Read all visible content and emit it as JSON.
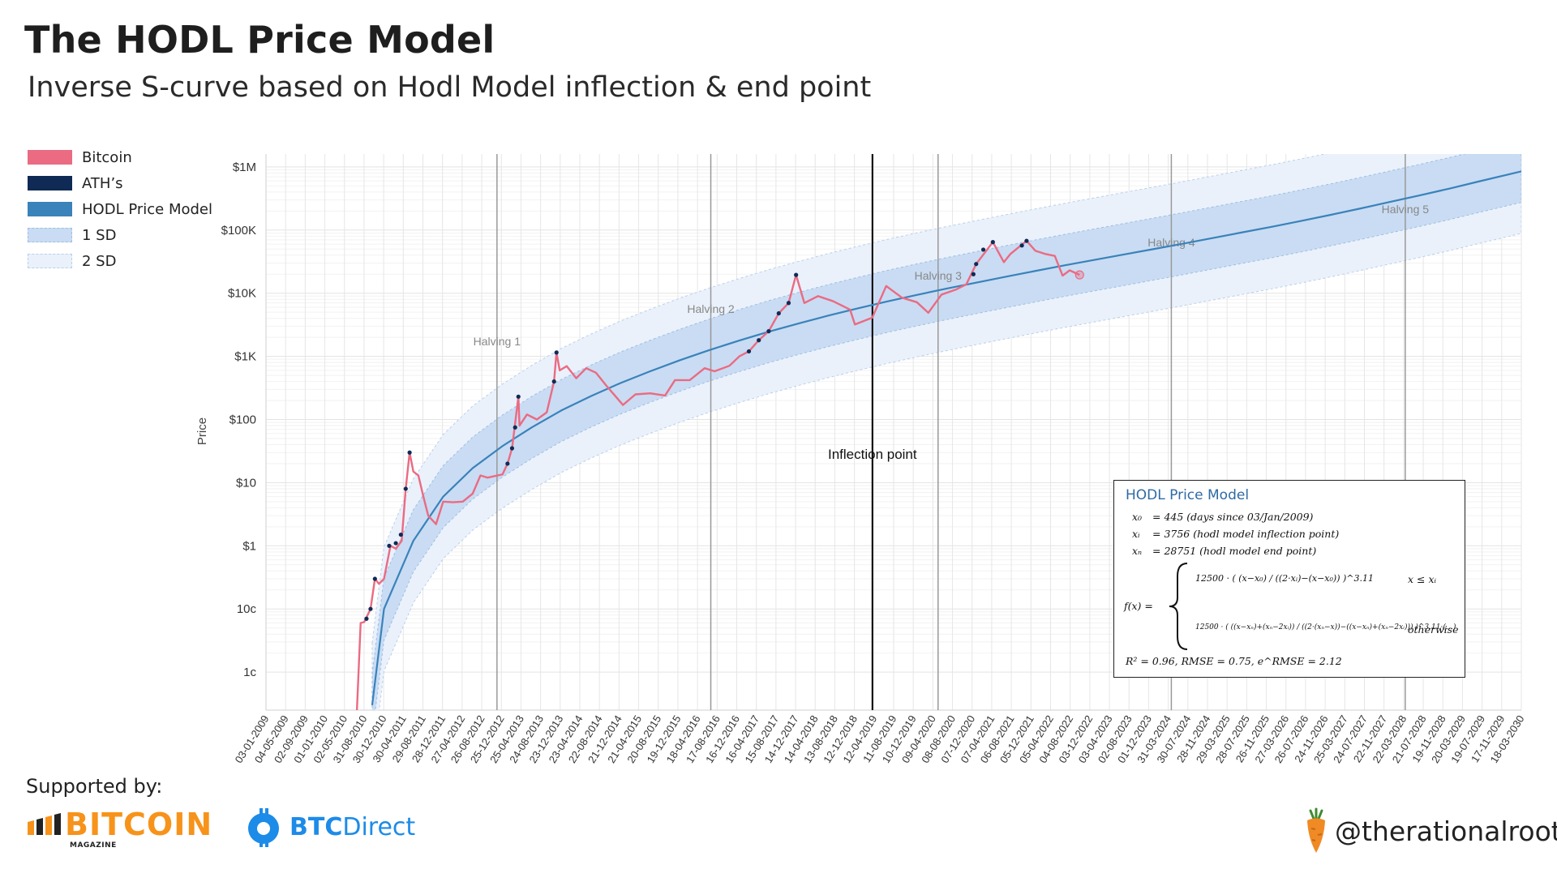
{
  "header": {
    "title": "The HODL Price Model",
    "subtitle": "Inverse S-curve based on Hodl Model inflection & end point"
  },
  "legend": [
    {
      "label": "Bitcoin",
      "color": "#ea6b82",
      "kind": "solid"
    },
    {
      "label": "ATH’s",
      "color": "#0f2a55",
      "kind": "solid"
    },
    {
      "label": "HODL Price Model",
      "color": "#3a82ba",
      "kind": "solid"
    },
    {
      "label": "1 SD",
      "color": "#c9dcf3",
      "kind": "band"
    },
    {
      "label": "2 SD",
      "color": "#eaf1fb",
      "kind": "band"
    }
  ],
  "chart_data": {
    "type": "line",
    "ylabel": "Price",
    "yscale": "log",
    "ylim": [
      0.0025,
      1600000
    ],
    "xlim": [
      "03-01-2009",
      "18-03-2030"
    ],
    "y_ticks": [
      {
        "value": 0.01,
        "label": "1c"
      },
      {
        "value": 0.1,
        "label": "10c"
      },
      {
        "value": 1,
        "label": "$1"
      },
      {
        "value": 10,
        "label": "$10"
      },
      {
        "value": 100,
        "label": "$100"
      },
      {
        "value": 1000,
        "label": "$1K"
      },
      {
        "value": 10000,
        "label": "$10K"
      },
      {
        "value": 100000,
        "label": "$100K"
      },
      {
        "value": 1000000,
        "label": "$1M"
      }
    ],
    "x_ticks": [
      "03-01-2009",
      "04-05-2009",
      "02-09-2009",
      "01-01-2010",
      "02-05-2010",
      "31-08-2010",
      "30-12-2010",
      "30-04-2011",
      "29-08-2011",
      "28-12-2011",
      "27-04-2012",
      "26-08-2012",
      "25-12-2012",
      "25-04-2013",
      "24-08-2013",
      "23-12-2013",
      "23-04-2014",
      "22-08-2014",
      "21-12-2014",
      "21-04-2015",
      "20-08-2015",
      "19-12-2015",
      "18-04-2016",
      "17-08-2016",
      "16-12-2016",
      "16-04-2017",
      "15-08-2017",
      "14-12-2017",
      "14-04-2018",
      "13-08-2018",
      "12-12-2018",
      "12-04-2019",
      "11-08-2019",
      "10-12-2019",
      "09-04-2020",
      "08-08-2020",
      "07-12-2020",
      "07-04-2021",
      "06-08-2021",
      "05-12-2021",
      "05-04-2022",
      "04-08-2022",
      "03-12-2022",
      "03-04-2023",
      "02-08-2023",
      "01-12-2023",
      "31-03-2024",
      "30-07-2024",
      "28-11-2024",
      "29-03-2025",
      "28-07-2025",
      "26-11-2025",
      "27-03-2026",
      "26-07-2026",
      "24-11-2026",
      "25-03-2027",
      "24-07-2027",
      "22-11-2027",
      "22-03-2028",
      "21-07-2028",
      "19-11-2028",
      "20-03-2029",
      "19-07-2029",
      "17-11-2029",
      "18-03-2030"
    ],
    "annotations": [
      {
        "label": "Halving 1",
        "date": "28-11-2012",
        "color": "#999999"
      },
      {
        "label": "Halving 2",
        "date": "09-07-2016",
        "color": "#999999"
      },
      {
        "label": "Halving 3",
        "date": "11-05-2020",
        "color": "#999999"
      },
      {
        "label": "Halving 4",
        "date": "19-04-2024",
        "color": "#999999"
      },
      {
        "label": "Halving 5",
        "date": "01-04-2028",
        "color": "#999999"
      },
      {
        "label": "Inflection point",
        "date": "02-04-2019",
        "color": "#000000"
      }
    ],
    "model": {
      "name": "HODL Price Model",
      "x": [
        "20-10-2010",
        "01-01-2011",
        "01-07-2011",
        "01-01-2012",
        "01-07-2012",
        "01-01-2013",
        "01-07-2013",
        "01-01-2014",
        "01-07-2014",
        "01-01-2015",
        "01-07-2015",
        "01-01-2016",
        "01-07-2016",
        "01-01-2017",
        "01-07-2017",
        "01-01-2018",
        "01-07-2018",
        "01-01-2019",
        "01-07-2019",
        "01-01-2020",
        "01-07-2020",
        "01-01-2021",
        "01-07-2021",
        "01-01-2022",
        "01-07-2022",
        "01-01-2023",
        "01-07-2023",
        "01-01-2024",
        "01-07-2024",
        "01-01-2025",
        "01-07-2025",
        "01-01-2026",
        "01-07-2026",
        "01-01-2027",
        "01-07-2027",
        "01-01-2028",
        "01-07-2028",
        "01-01-2029",
        "01-07-2029",
        "18-03-2030"
      ],
      "y": [
        0.003,
        0.1,
        1.2,
        6,
        17,
        38,
        75,
        140,
        235,
        380,
        580,
        870,
        1260,
        1780,
        2460,
        3320,
        4400,
        5750,
        7400,
        9400,
        11800,
        14700,
        18200,
        22500,
        27600,
        33700,
        41000,
        50000,
        61000,
        75000,
        92000,
        113000,
        140000,
        175000,
        220000,
        280000,
        355000,
        455000,
        590000,
        850000
      ],
      "sd1_factor": 3.1,
      "sd2_factor": 9.6
    },
    "bitcoin": {
      "name": "Bitcoin",
      "x": [
        "18-07-2010",
        "10-08-2010",
        "01-09-2010",
        "10-10-2010",
        "06-11-2010",
        "01-12-2010",
        "01-01-2011",
        "10-02-2011",
        "15-03-2011",
        "20-04-2011",
        "15-05-2011",
        "08-06-2011",
        "01-07-2011",
        "01-08-2011",
        "01-09-2011",
        "01-10-2011",
        "18-11-2011",
        "01-01-2012",
        "01-03-2012",
        "01-05-2012",
        "01-07-2012",
        "18-08-2012",
        "01-10-2012",
        "01-12-2012",
        "01-01-2013",
        "01-02-2013",
        "01-03-2013",
        "09-04-2013",
        "16-04-2013",
        "01-06-2013",
        "01-08-2013",
        "01-10-2013",
        "15-11-2013",
        "30-11-2013",
        "20-12-2013",
        "01-02-2014",
        "01-04-2014",
        "01-06-2014",
        "01-08-2014",
        "01-10-2014",
        "14-01-2015",
        "01-04-2015",
        "01-07-2015",
        "01-10-2015",
        "01-12-2015",
        "01-03-2016",
        "01-06-2016",
        "01-08-2016",
        "01-11-2016",
        "01-01-2017",
        "01-03-2017",
        "01-05-2017",
        "01-07-2017",
        "01-09-2017",
        "01-11-2017",
        "17-12-2017",
        "06-02-2018",
        "01-05-2018",
        "01-08-2018",
        "15-11-2018",
        "15-12-2018",
        "01-04-2019",
        "26-06-2019",
        "01-10-2019",
        "01-01-2020",
        "12-03-2020",
        "01-06-2020",
        "01-09-2020",
        "01-11-2020",
        "01-01-2021",
        "14-04-2021",
        "21-06-2021",
        "01-08-2021",
        "08-11-2021",
        "01-01-2022",
        "01-03-2022",
        "01-05-2022",
        "18-06-2022",
        "01-08-2022",
        "01-10-2022"
      ],
      "y": [
        0.0025,
        0.06,
        0.062,
        0.1,
        0.3,
        0.25,
        0.3,
        1,
        0.9,
        1.2,
        8,
        30,
        15,
        13,
        6,
        3,
        2.2,
        5,
        4.9,
        5,
        6.7,
        13,
        12,
        13,
        13.5,
        20,
        35,
        230,
        80,
        120,
        100,
        130,
        400,
        1150,
        600,
        700,
        450,
        650,
        550,
        350,
        170,
        250,
        260,
        240,
        420,
        420,
        650,
        580,
        710,
        1000,
        1200,
        1800,
        2500,
        4800,
        7000,
        19500,
        7000,
        9000,
        7500,
        5500,
        3200,
        4100,
        13000,
        8500,
        7200,
        4900,
        9500,
        11500,
        13800,
        29000,
        64500,
        31000,
        42000,
        67500,
        47000,
        42000,
        39000,
        19000,
        23000,
        19500
      ]
    },
    "ath": {
      "name": "ATH’s",
      "x": [
        "15-09-2010",
        "10-10-2010",
        "06-11-2010",
        "02-02-2011",
        "15-03-2011",
        "15-04-2011",
        "15-05-2011",
        "08-06-2011",
        "01-02-2013",
        "01-03-2013",
        "20-03-2013",
        "09-04-2013",
        "15-11-2013",
        "30-11-2013",
        "01-03-2017",
        "01-05-2017",
        "01-07-2017",
        "01-09-2017",
        "01-11-2017",
        "17-12-2017",
        "15-12-2020",
        "01-01-2021",
        "14-02-2021",
        "14-04-2021",
        "10-10-2021",
        "08-11-2021"
      ],
      "y": [
        0.07,
        0.1,
        0.3,
        1,
        1.1,
        1.5,
        8,
        30,
        20,
        35,
        75,
        230,
        400,
        1150,
        1200,
        1800,
        2500,
        4800,
        7000,
        19500,
        20000,
        29000,
        49000,
        64500,
        57000,
        67500
      ]
    },
    "current_marker": {
      "date": "01-10-2022",
      "value": 19500
    }
  },
  "formula_box": {
    "title": "HODL Price Model",
    "x0_sym": "x₀",
    "x0": "= 445 (days since 03/Jan/2009)",
    "xi_sym": "xᵢ",
    "xi": "= 3756 (hodl model inflection point)",
    "xn_sym": "xₙ",
    "xn": "= 28751 (hodl model end point)",
    "f_label": "f(x) =",
    "case1": "12500 · ( (x−x₀) / ((2·xᵢ)−(x−x₀)) )^3.11",
    "case1_cond": "x ≤ xᵢ",
    "case2": "12500 · ( ((x−xₙ)+(xₙ−2xᵢ)) / ((2·(xₙ−x))−((x−xₙ)+(xₙ−2xᵢ))) )^3.11·(…)",
    "case2_cond": "otherwise",
    "stats": "R² = 0.96,  RMSE = 0.75,  e^RMSE = 2.12"
  },
  "footer": {
    "supported_by": "Supported by:",
    "sponsor1": "BITCOIN",
    "sponsor1_sub": "MAGAZINE",
    "sponsor2_a": "BTC",
    "sponsor2_b": "Direct",
    "handle": "@therationalroot"
  },
  "colors": {
    "bitcoin": "#ea6b82",
    "ath": "#0f2a55",
    "model": "#3a82ba",
    "sd1": "#c9dcf3",
    "sd2": "#eaf1fb",
    "btcmag": "#f7931a",
    "btcdirect": "#1d8be8",
    "carrot": "#f08a24"
  }
}
